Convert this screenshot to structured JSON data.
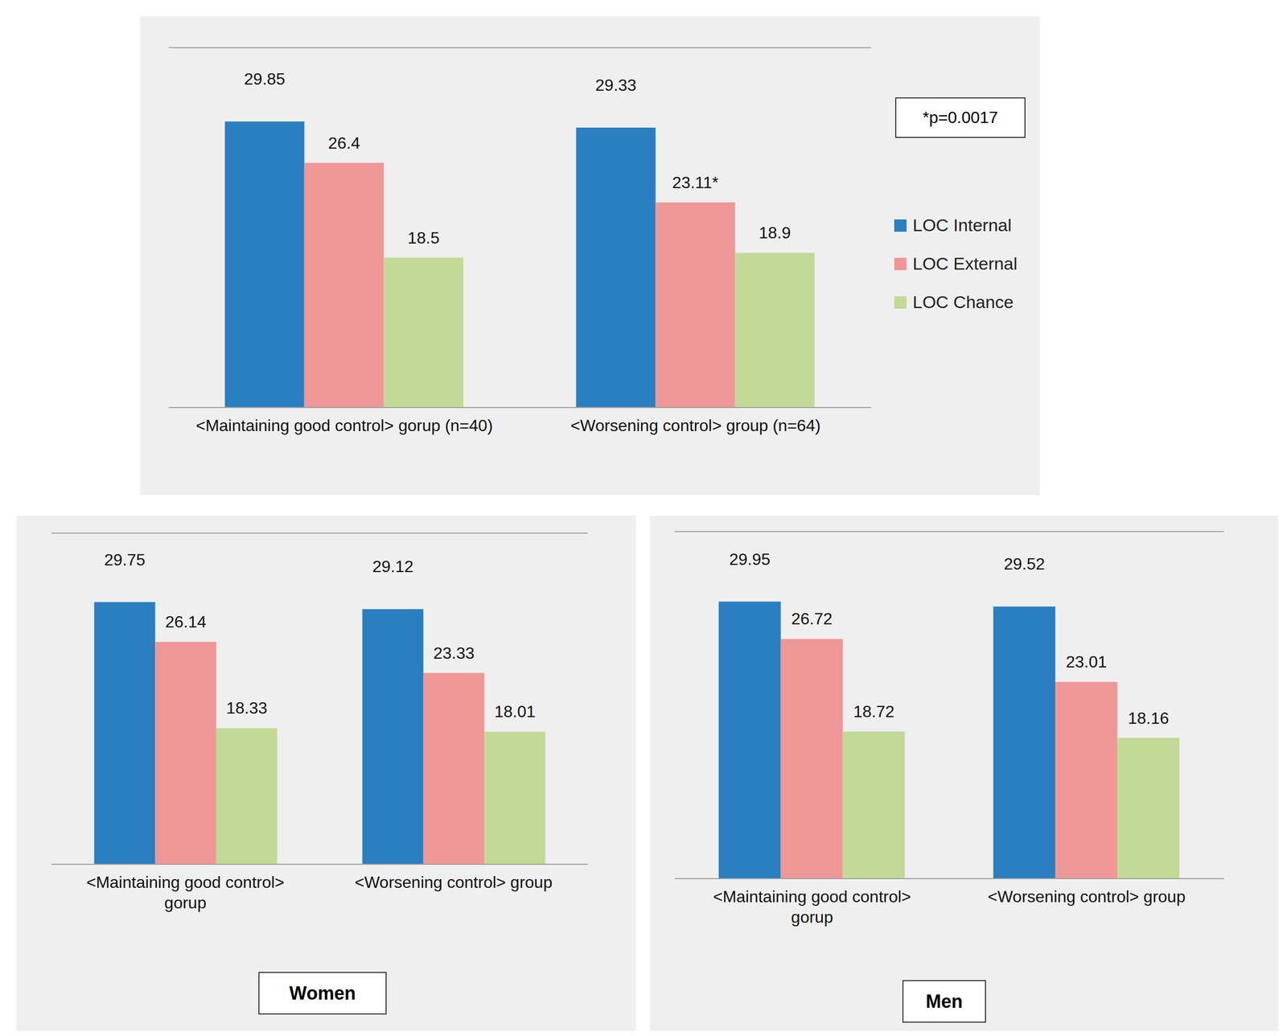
{
  "chart_data": [
    {
      "type": "bar",
      "annotation": "*p=0.0017",
      "categories": [
        "<Maintaining good control> gorup (n=40)",
        "<Worsening control> group (n=64)"
      ],
      "series": [
        {
          "name": "LOC Internal",
          "color": "#2a7fc1",
          "values": [
            29.85,
            29.33
          ]
        },
        {
          "name": "LOC External",
          "color": "#ef9797",
          "values": [
            26.4,
            23.11
          ],
          "value_labels": [
            "26.4",
            "23.11*"
          ]
        },
        {
          "name": "LOC Chance",
          "color": "#c2da96",
          "values": [
            18.5,
            18.9
          ]
        }
      ],
      "ylim": [
        6,
        36
      ],
      "yticks": [
        6,
        12,
        18,
        24,
        30,
        36
      ],
      "grid": true,
      "legend": "right",
      "data_labels": true,
      "tick_labels": "x"
    },
    {
      "type": "bar",
      "title": "Women",
      "categories": [
        "<Maintaining good control> gorup",
        "<Worsening control> group"
      ],
      "series": [
        {
          "name": "LOC Internal",
          "color": "#2a7fc1",
          "values": [
            29.75,
            29.12
          ]
        },
        {
          "name": "LOC External",
          "color": "#ef9797",
          "values": [
            26.14,
            23.33
          ]
        },
        {
          "name": "LOC Chance",
          "color": "#c2da96",
          "values": [
            18.33,
            18.01
          ]
        }
      ],
      "ylim": [
        6,
        36
      ],
      "yticks": [
        6,
        12,
        18,
        24,
        30,
        36
      ],
      "grid": true,
      "data_labels": true,
      "tick_labels": "x"
    },
    {
      "type": "bar",
      "title": "Men",
      "categories": [
        "<Maintaining good control> gorup",
        "<Worsening control> group"
      ],
      "series": [
        {
          "name": "LOC Internal",
          "color": "#2a7fc1",
          "values": [
            29.95,
            29.52
          ]
        },
        {
          "name": "LOC External",
          "color": "#ef9797",
          "values": [
            26.72,
            23.01
          ]
        },
        {
          "name": "LOC Chance",
          "color": "#c2da96",
          "values": [
            18.72,
            18.16
          ]
        }
      ],
      "ylim": [
        6,
        36
      ],
      "yticks": [
        6,
        12,
        18,
        24,
        30,
        36
      ],
      "grid": true,
      "data_labels": true,
      "tick_labels": "x"
    }
  ]
}
